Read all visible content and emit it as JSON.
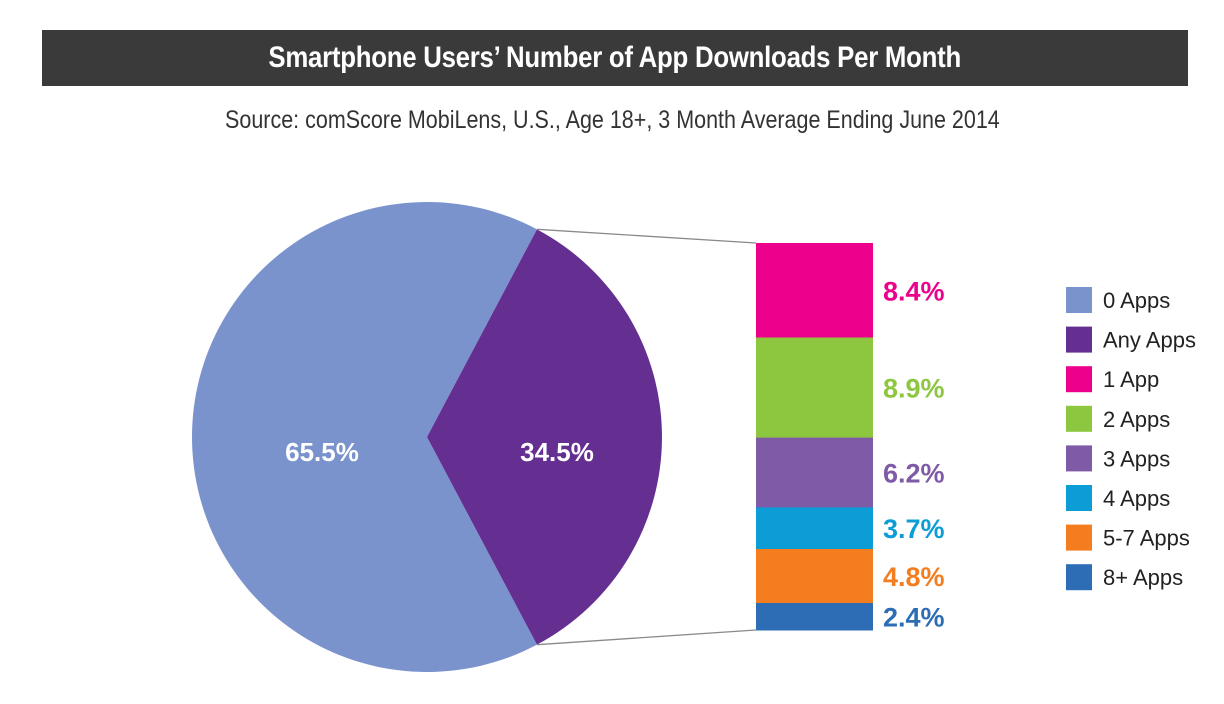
{
  "title": "Smartphone Users’ Number of App Downloads Per Month",
  "subtitle": "Source: comScore MobiLens, U.S., Age 18+, 3 Month Average Ending June 2014",
  "chart_data": {
    "type": "pie",
    "pie": {
      "slices": [
        {
          "label": "0 Apps",
          "value": 65.5,
          "value_label": "65.5%",
          "color": "#7b93cd"
        },
        {
          "label": "Any Apps",
          "value": 34.5,
          "value_label": "34.5%",
          "color": "#652f91"
        }
      ]
    },
    "breakdown": {
      "type": "stacked-bar",
      "of": "Any Apps",
      "segments": [
        {
          "label": "1 App",
          "value": 8.4,
          "value_label": "8.4%",
          "color": "#ec008c"
        },
        {
          "label": "2 Apps",
          "value": 8.9,
          "value_label": "8.9%",
          "color": "#8dc63f"
        },
        {
          "label": "3 Apps",
          "value": 6.2,
          "value_label": "6.2%",
          "color": "#7f5aa6"
        },
        {
          "label": "4 Apps",
          "value": 3.7,
          "value_label": "3.7%",
          "color": "#0c9cd6"
        },
        {
          "label": "5-7 Apps",
          "value": 4.8,
          "value_label": "4.8%",
          "color": "#f47d20"
        },
        {
          "label": "8+ Apps",
          "value": 2.4,
          "value_label": "2.4%",
          "color": "#2c6db5"
        }
      ]
    },
    "legend": {
      "position": "right",
      "items": [
        {
          "label": "0 Apps",
          "color": "#7b93cd"
        },
        {
          "label": "Any Apps",
          "color": "#652f91"
        },
        {
          "label": "1 App",
          "color": "#ec008c"
        },
        {
          "label": "2 Apps",
          "color": "#8dc63f"
        },
        {
          "label": "3 Apps",
          "color": "#7f5aa6"
        },
        {
          "label": "4 Apps",
          "color": "#0c9cd6"
        },
        {
          "label": "5-7 Apps",
          "color": "#f47d20"
        },
        {
          "label": "8+ Apps",
          "color": "#2c6db5"
        }
      ]
    }
  }
}
